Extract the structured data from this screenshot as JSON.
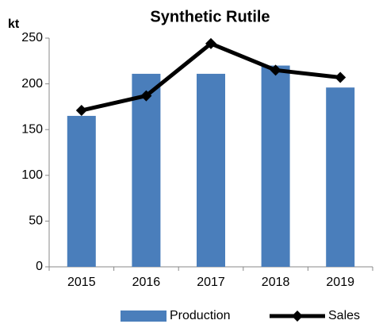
{
  "chart_data": {
    "type": "bar",
    "title": "Synthetic Rutile",
    "y_label": "kt",
    "categories": [
      "2015",
      "2016",
      "2017",
      "2018",
      "2019"
    ],
    "series": [
      {
        "name": "Production",
        "type": "bar",
        "color": "#4a7ebb",
        "values": [
          165,
          211,
          211,
          220,
          196
        ]
      },
      {
        "name": "Sales",
        "type": "line",
        "color": "#000000",
        "values": [
          171,
          187,
          244,
          215,
          207
        ]
      }
    ],
    "ylim": [
      0,
      250
    ],
    "yticks": [
      0,
      50,
      100,
      150,
      200,
      250
    ],
    "grid": false,
    "legend": "bottom"
  }
}
